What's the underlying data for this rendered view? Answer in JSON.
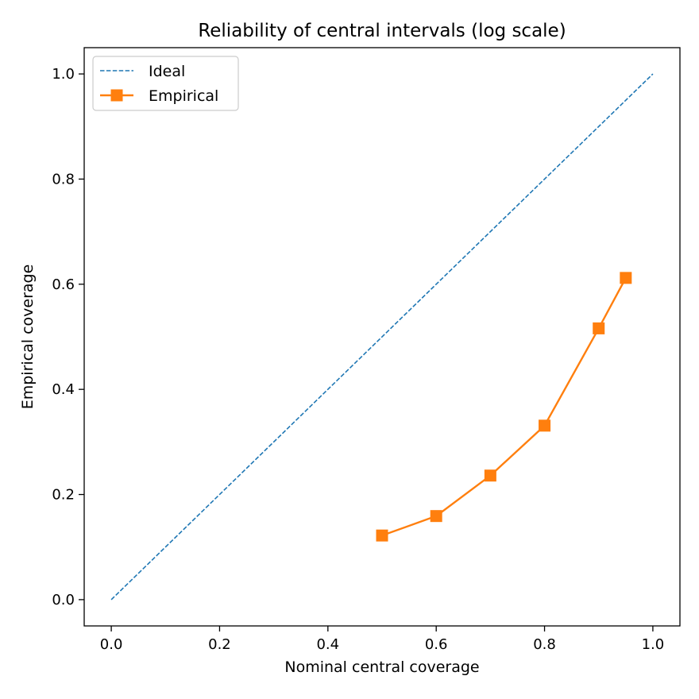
{
  "chart_data": {
    "type": "line",
    "title": "Reliability of central intervals (log scale)",
    "xlabel": "Nominal central coverage",
    "ylabel": "Empirical coverage",
    "xlim": [
      -0.05,
      1.05
    ],
    "ylim": [
      -0.05,
      1.05
    ],
    "xticks": [
      0.0,
      0.2,
      0.4,
      0.6,
      0.8,
      1.0
    ],
    "xtick_labels": [
      "0.0",
      "0.2",
      "0.4",
      "0.6",
      "0.8",
      "1.0"
    ],
    "yticks": [
      0.0,
      0.2,
      0.4,
      0.6,
      0.8,
      1.0
    ],
    "ytick_labels": [
      "0.0",
      "0.2",
      "0.4",
      "0.6",
      "0.8",
      "1.0"
    ],
    "grid": false,
    "legend_position": "top-left",
    "series": [
      {
        "name": "Ideal",
        "style": "dashed",
        "marker": "none",
        "color": "#1f77b4",
        "x": [
          0.0,
          1.0
        ],
        "y": [
          0.0,
          1.0
        ]
      },
      {
        "name": "Empirical",
        "style": "solid",
        "marker": "square",
        "color": "#ff7f0e",
        "x": [
          0.5,
          0.6,
          0.7,
          0.8,
          0.9,
          0.95
        ],
        "y": [
          0.122,
          0.159,
          0.236,
          0.331,
          0.516,
          0.612
        ]
      }
    ]
  }
}
